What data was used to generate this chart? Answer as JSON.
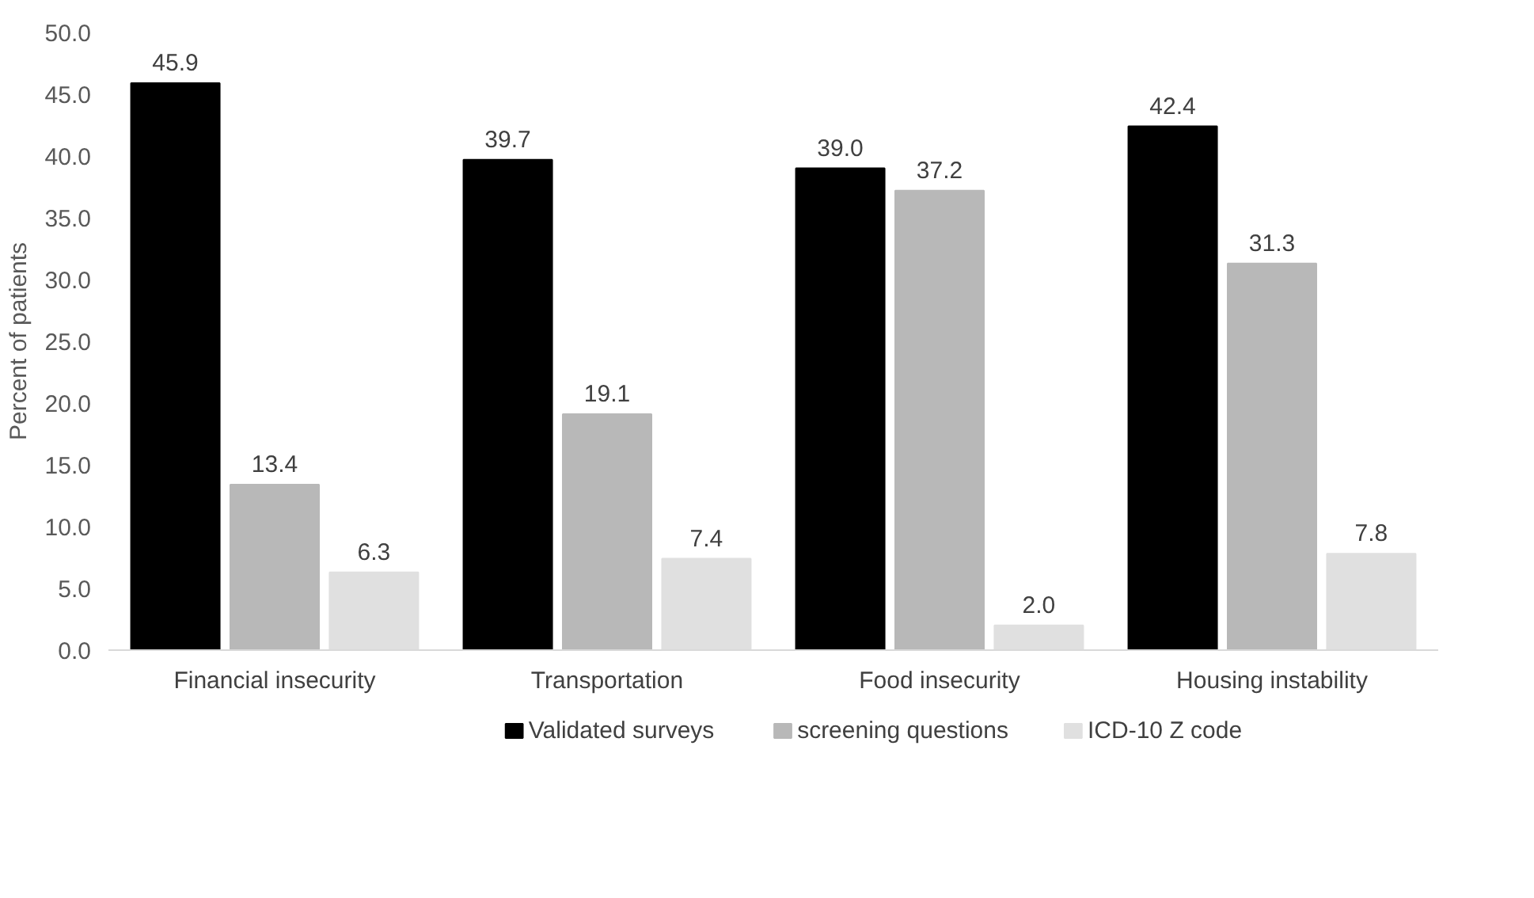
{
  "chart_data": {
    "type": "bar",
    "ylabel": "Percent of patients",
    "categories": [
      "Financial insecurity",
      "Transportation",
      "Food insecurity",
      "Housing instability"
    ],
    "series": [
      {
        "name": "Validated surveys",
        "color": "#000000",
        "values": [
          45.9,
          39.7,
          39.0,
          42.4
        ],
        "value_labels": [
          "45.9",
          "39.7",
          "39.0",
          "42.4"
        ]
      },
      {
        "name": "screening questions",
        "color": "#b8b8b8",
        "values": [
          13.4,
          19.1,
          37.2,
          31.3
        ],
        "value_labels": [
          "13.4",
          "19.1",
          "37.2",
          "31.3"
        ]
      },
      {
        "name": "ICD-10 Z code",
        "color": "#e0e0e0",
        "values": [
          6.3,
          7.4,
          2.0,
          7.8
        ],
        "value_labels": [
          "6.3",
          "7.4",
          "2.0",
          "7.8"
        ]
      }
    ],
    "ylim": [
      0,
      50
    ],
    "yticks": [
      {
        "value": 0,
        "label": "0.0"
      },
      {
        "value": 5,
        "label": "5.0"
      },
      {
        "value": 10,
        "label": "10.0"
      },
      {
        "value": 15,
        "label": "15.0"
      },
      {
        "value": 20,
        "label": "20.0"
      },
      {
        "value": 25,
        "label": "25.0"
      },
      {
        "value": 30,
        "label": "30.0"
      },
      {
        "value": 35,
        "label": "35.0"
      },
      {
        "value": 40,
        "label": "40.0"
      },
      {
        "value": 45,
        "label": "45.0"
      },
      {
        "value": 50,
        "label": "50.0"
      }
    ],
    "grid": false,
    "legend": "bottom"
  }
}
